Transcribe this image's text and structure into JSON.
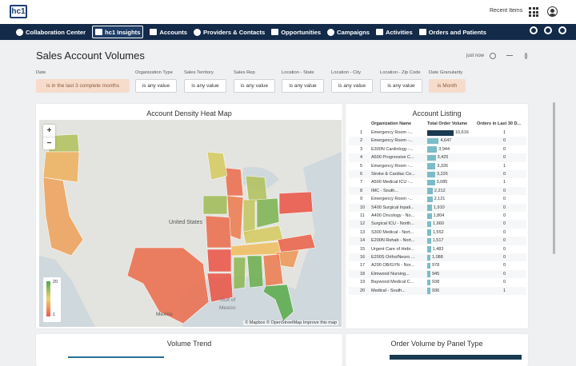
{
  "header": {
    "logo": "hc1",
    "recent_items": "Recent Items"
  },
  "nav": {
    "items": [
      {
        "label": "Collaboration Center",
        "icon": "collab-icon"
      },
      {
        "label": "hc1 Insights",
        "icon": "insights-icon",
        "active": true
      },
      {
        "label": "Accounts",
        "icon": "building-icon"
      },
      {
        "label": "Providers & Contacts",
        "icon": "person-icon"
      },
      {
        "label": "Opportunities",
        "icon": "money-icon"
      },
      {
        "label": "Campaigns",
        "icon": "megaphone-icon"
      },
      {
        "label": "Activities",
        "icon": "briefcase-icon"
      },
      {
        "label": "Orders and Patients",
        "icon": "caduceus-icon"
      }
    ]
  },
  "page": {
    "title": "Sales Account Volumes",
    "refresh_status": "just now"
  },
  "filters": [
    {
      "label": "Date",
      "value": "is in the last 3 complete months",
      "highlight": true
    },
    {
      "label": "Organization Type",
      "value": "is any value"
    },
    {
      "label": "Sales Territory",
      "value": "is any value"
    },
    {
      "label": "Sales Rep",
      "value": "is any value"
    },
    {
      "label": "Location - State",
      "value": "is any value"
    },
    {
      "label": "Location - City",
      "value": "is any value"
    },
    {
      "label": "Location - Zip Code",
      "value": "is any value"
    },
    {
      "label": "Date Granularity",
      "value": "is Month",
      "highlight": true
    }
  ],
  "map_card": {
    "title": "Account Density Heat Map",
    "zoom_in": "+",
    "zoom_out": "−",
    "legend_max": "20",
    "legend_min": "1",
    "attribution": "© Mapbox © OpenStreetMap Improve this map",
    "labels": [
      {
        "text": "United States"
      },
      {
        "text": "Gulf of"
      },
      {
        "text": "Mexico"
      },
      {
        "text": "Mexico"
      }
    ],
    "state_values": [
      {
        "state": "WA",
        "level": 14
      },
      {
        "state": "OR",
        "level": 8
      },
      {
        "state": "CA",
        "level": 7
      },
      {
        "state": "TX",
        "level": 3
      },
      {
        "state": "LA",
        "level": 1
      },
      {
        "state": "WI",
        "level": 3
      },
      {
        "state": "MI",
        "level": 14
      },
      {
        "state": "IL",
        "level": 4
      },
      {
        "state": "IN",
        "level": 13
      },
      {
        "state": "OH",
        "level": 17
      },
      {
        "state": "PA",
        "level": 1
      },
      {
        "state": "KY",
        "level": 12
      },
      {
        "state": "TN",
        "level": 9
      },
      {
        "state": "NC",
        "level": 2
      },
      {
        "state": "SC",
        "level": 6
      },
      {
        "state": "GA",
        "level": 4
      },
      {
        "state": "AL",
        "level": 18
      },
      {
        "state": "MS",
        "level": 16
      },
      {
        "state": "FL",
        "level": 19
      },
      {
        "state": "MO",
        "level": 3
      },
      {
        "state": "AR",
        "level": 1
      },
      {
        "state": "IA",
        "level": 15
      },
      {
        "state": "MN",
        "level": 12
      }
    ],
    "colors": {
      "low": "#ea5a4d",
      "mid": "#f0d36b",
      "high": "#4ea84f"
    }
  },
  "listing": {
    "title": "Account Listing",
    "columns": [
      "Organization Name",
      "Total Order Volume",
      "Orders in Last 30 D..."
    ],
    "rows": [
      {
        "n": "1",
        "name": "Emergency Room -...",
        "volume": 10616,
        "volume_label": "10,616",
        "recent": "1"
      },
      {
        "n": "2",
        "name": "Emergency Room -...",
        "volume": 4647,
        "volume_label": "4,647",
        "recent": "0"
      },
      {
        "n": "3",
        "name": "E300N Cardiology -...",
        "volume": 3944,
        "volume_label": "3,944",
        "recent": "0"
      },
      {
        "n": "4",
        "name": "A600 Progressive C...",
        "volume": 3425,
        "volume_label": "3,425",
        "recent": "0"
      },
      {
        "n": "5",
        "name": "Emergency Room -...",
        "volume": 3326,
        "volume_label": "3,326",
        "recent": "1"
      },
      {
        "n": "6",
        "name": "Stroke & Cardiac Ce...",
        "volume": 3226,
        "volume_label": "3,226",
        "recent": "0"
      },
      {
        "n": "7",
        "name": "A500 Medical ICU -...",
        "volume": 3085,
        "volume_label": "3,085",
        "recent": "1"
      },
      {
        "n": "8",
        "name": "IMC - South...",
        "volume": 2212,
        "volume_label": "2,212",
        "recent": "0"
      },
      {
        "n": "9",
        "name": "Emergency Room -...",
        "volume": 2121,
        "volume_label": "2,121",
        "recent": "0"
      },
      {
        "n": "10",
        "name": "S400 Surgical Inpati...",
        "volume": 1910,
        "volume_label": "1,910",
        "recent": "0"
      },
      {
        "n": "11",
        "name": "A400 Oncology - No...",
        "volume": 1804,
        "volume_label": "1,804",
        "recent": "0"
      },
      {
        "n": "12",
        "name": "Surgical ICU - North...",
        "volume": 1660,
        "volume_label": "1,660",
        "recent": "0"
      },
      {
        "n": "13",
        "name": "S300 Medical - Nort...",
        "volume": 1552,
        "volume_label": "1,552",
        "recent": "0"
      },
      {
        "n": "14",
        "name": "E200N Rehab - Nort...",
        "volume": 1517,
        "volume_label": "1,517",
        "recent": "0"
      },
      {
        "n": "15",
        "name": "Urgent Care of Hebr...",
        "volume": 1483,
        "volume_label": "1,483",
        "recent": "0"
      },
      {
        "n": "16",
        "name": "E200S Ortho/Neuro ...",
        "volume": 1088,
        "volume_label": "1,088",
        "recent": "0"
      },
      {
        "n": "17",
        "name": "A200 OB/GYN - Nor...",
        "volume": 978,
        "volume_label": "978",
        "recent": "0"
      },
      {
        "n": "18",
        "name": "Elmwood Nursing...",
        "volume": 945,
        "volume_label": "945",
        "recent": "0"
      },
      {
        "n": "19",
        "name": "Baywood Medical C...",
        "volume": 938,
        "volume_label": "938",
        "recent": "0"
      },
      {
        "n": "20",
        "name": "Medical - South...",
        "volume": 936,
        "volume_label": "936",
        "recent": "1"
      }
    ]
  },
  "bottom": {
    "volume_trend_title": "Volume Trend",
    "panel_type_title": "Order Volume by Panel Type"
  }
}
